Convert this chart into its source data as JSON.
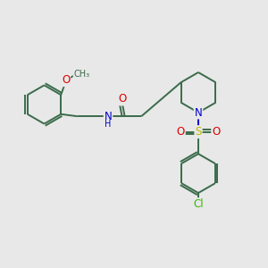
{
  "bg_color": "#e8e8e8",
  "bond_color": "#3a6b4a",
  "bond_width": 1.4,
  "atom_colors": {
    "O": "#dd0000",
    "N": "#0000cc",
    "S": "#bbbb00",
    "Cl": "#33bb00",
    "C": "#3a6b4a"
  },
  "font_size": 8.5,
  "fig_width": 3.0,
  "fig_height": 3.0,
  "dpi": 100,
  "xlim": [
    0,
    10
  ],
  "ylim": [
    0,
    10
  ]
}
